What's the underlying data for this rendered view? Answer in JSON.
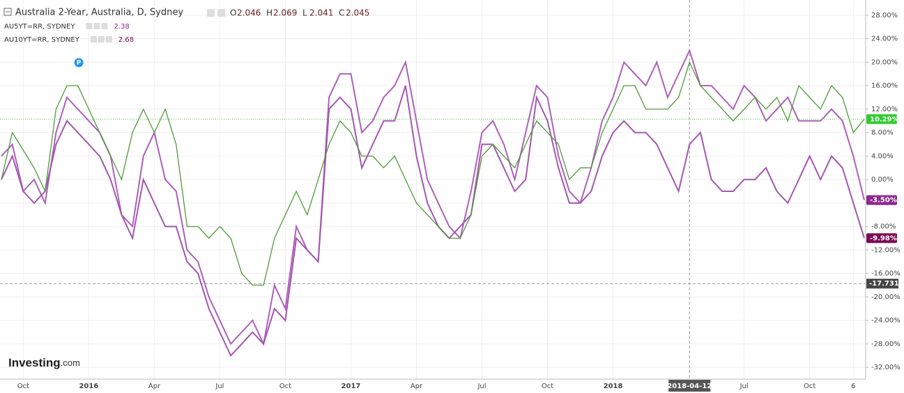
{
  "chart_data": {
    "type": "line",
    "title": "Australia 2-Year, Australia, D, Sydney",
    "ohlc": [
      {
        "label": "O",
        "value": 2.046
      },
      {
        "label": "H",
        "value": 2.069
      },
      {
        "label": "L",
        "value": 2.041
      },
      {
        "label": "C",
        "value": 2.045
      }
    ],
    "marker": {
      "label": "P"
    },
    "watermark": [
      "Investing",
      ".com"
    ],
    "categories": [
      null,
      null,
      "Oct",
      null,
      null,
      null,
      null,
      null,
      "2016",
      null,
      null,
      null,
      null,
      null,
      "Apr",
      null,
      null,
      null,
      null,
      null,
      "Jul",
      null,
      null,
      null,
      null,
      null,
      "Oct",
      null,
      null,
      null,
      null,
      null,
      "2017",
      null,
      null,
      null,
      null,
      null,
      "Apr",
      null,
      null,
      null,
      null,
      null,
      "Jul",
      null,
      null,
      null,
      null,
      null,
      "Oct",
      null,
      null,
      null,
      null,
      null,
      "2018",
      null,
      null,
      null,
      null,
      null,
      null,
      "2018-04-12",
      null,
      null,
      null,
      null,
      "Jul",
      null,
      null,
      null,
      null,
      null,
      "Oct",
      null,
      null,
      null,
      "6",
      null
    ],
    "series": [
      {
        "color": "#4f9a3a",
        "label_color": "#2ecc2e",
        "last_label": "10.29%",
        "values": [
          0,
          8,
          5,
          2,
          -2,
          12,
          16,
          16,
          12,
          8,
          4,
          0,
          8,
          12,
          8,
          12,
          6,
          -8,
          -8,
          -10,
          -8,
          -10,
          -16,
          -18,
          -18,
          -10,
          -6,
          -2,
          -6,
          0,
          6,
          10,
          8,
          4,
          4,
          2,
          4,
          0,
          -4,
          -6,
          -8,
          -10,
          -10,
          -6,
          4,
          6,
          4,
          2,
          6,
          10,
          8,
          6,
          0,
          2,
          2,
          8,
          12,
          16,
          16,
          12,
          12,
          12,
          14,
          20,
          16,
          14,
          12,
          10,
          12,
          14,
          12,
          14,
          10,
          16,
          14,
          12,
          16,
          14,
          8,
          10.29
        ]
      },
      {
        "name": "AU5YT=RR, SYDNEY",
        "yield": 2.38,
        "color": "#ad5fba",
        "label_color": "#8e2a8e",
        "last_label": "-3.50%",
        "values": [
          4,
          6,
          -2,
          0,
          -4,
          8,
          14,
          12,
          10,
          8,
          4,
          -6,
          -8,
          4,
          8,
          0,
          -2,
          -12,
          -14,
          -20,
          -24,
          -28,
          -26,
          -24,
          -28,
          -18,
          -22,
          -8,
          -12,
          -14,
          14,
          18,
          18,
          8,
          10,
          14,
          16,
          20,
          10,
          0,
          -4,
          -8,
          -10,
          -2,
          8,
          10,
          6,
          0,
          8,
          16,
          14,
          4,
          -2,
          -4,
          2,
          10,
          14,
          20,
          18,
          16,
          20,
          14,
          18,
          22,
          16,
          16,
          14,
          12,
          16,
          14,
          10,
          12,
          14,
          10,
          10,
          10,
          12,
          10,
          4,
          -3.5
        ]
      },
      {
        "name": "AU10YT=RR, SYDNEY",
        "yield": 2.68,
        "color": "#a455b0",
        "label_color": "#7a0a55",
        "last_label": "-9.98%",
        "values": [
          0,
          4,
          -2,
          -4,
          -2,
          6,
          10,
          8,
          6,
          4,
          0,
          -6,
          -10,
          0,
          -4,
          -8,
          -8,
          -14,
          -16,
          -22,
          -26,
          -30,
          -28,
          -26,
          -28,
          -22,
          -24,
          -10,
          -12,
          -14,
          12,
          14,
          12,
          2,
          6,
          10,
          10,
          16,
          4,
          -4,
          -8,
          -10,
          -8,
          -6,
          6,
          6,
          2,
          -2,
          0,
          14,
          10,
          2,
          -4,
          -4,
          -2,
          4,
          8,
          10,
          8,
          8,
          6,
          2,
          -2,
          6,
          8,
          0,
          -2,
          -2,
          0,
          0,
          2,
          -2,
          -4,
          0,
          4,
          0,
          4,
          2,
          -4,
          -9.98
        ]
      }
    ],
    "ylim": [
      -34,
      30
    ],
    "yticks": [
      {
        "value": 28,
        "label": "28.00%"
      },
      {
        "value": 24,
        "label": "24.00%"
      },
      {
        "value": 20,
        "label": "20.00%"
      },
      {
        "value": 16,
        "label": "16.00%"
      },
      {
        "value": 12,
        "label": "12.00%"
      },
      {
        "value": 8,
        "label": "8.00%"
      },
      {
        "value": 4,
        "label": "4.00%"
      },
      {
        "value": 0,
        "label": "0.00%"
      },
      {
        "value": -4,
        "label": "-4.00%"
      },
      {
        "value": -8,
        "label": "-8.00%"
      },
      {
        "value": -12,
        "label": "-12.00%"
      },
      {
        "value": -16,
        "label": "-16.00%"
      },
      {
        "value": -20,
        "label": "-20.00%"
      },
      {
        "value": -24,
        "label": "-24.00%"
      },
      {
        "value": -28,
        "label": "-28.00%"
      },
      {
        "value": -32,
        "label": "-32.00%"
      }
    ],
    "crosshair": {
      "y": -17.731
    },
    "grid": true
  }
}
